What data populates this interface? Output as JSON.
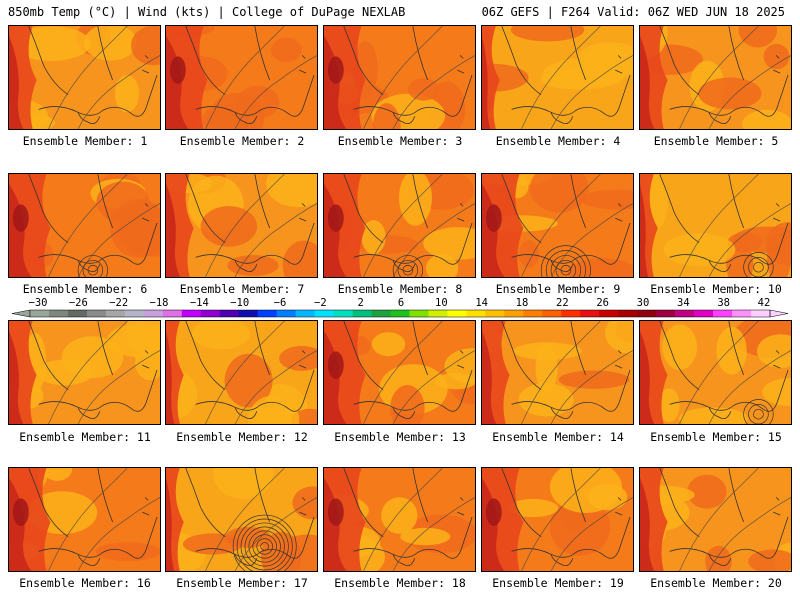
{
  "header": {
    "left": "850mb Temp (°C) | Wind (kts) | College of DuPage NEXLAB",
    "right": "06Z GEFS | F264 Valid: 06Z WED JUN 18 2025"
  },
  "members": [
    {
      "label": "Ensemble Member: 1",
      "style": "warm",
      "low": null
    },
    {
      "label": "Ensemble Member: 2",
      "style": "hot-west",
      "low": null
    },
    {
      "label": "Ensemble Member: 3",
      "style": "hot-west",
      "low": null
    },
    {
      "label": "Ensemble Member: 4",
      "style": "mild",
      "low": null
    },
    {
      "label": "Ensemble Member: 5",
      "style": "warm",
      "low": null
    },
    {
      "label": "Ensemble Member: 6",
      "style": "hot-west",
      "low": "weak"
    },
    {
      "label": "Ensemble Member: 7",
      "style": "warm",
      "low": null
    },
    {
      "label": "Ensemble Member: 8",
      "style": "hot-west",
      "low": "weak"
    },
    {
      "label": "Ensemble Member: 9",
      "style": "hot-west",
      "low": "moderate"
    },
    {
      "label": "Ensemble Member: 10",
      "style": "mild",
      "low": "weak-east"
    },
    {
      "label": "Ensemble Member: 11",
      "style": "warm",
      "low": null
    },
    {
      "label": "Ensemble Member: 12",
      "style": "mild",
      "low": null
    },
    {
      "label": "Ensemble Member: 13",
      "style": "hot-west",
      "low": null
    },
    {
      "label": "Ensemble Member: 14",
      "style": "warm",
      "low": null
    },
    {
      "label": "Ensemble Member: 15",
      "style": "warm",
      "low": "weak-east"
    },
    {
      "label": "Ensemble Member: 16",
      "style": "hot-west",
      "low": null
    },
    {
      "label": "Ensemble Member: 17",
      "style": "mild",
      "low": "strong"
    },
    {
      "label": "Ensemble Member: 18",
      "style": "hot-west",
      "low": null
    },
    {
      "label": "Ensemble Member: 19",
      "style": "hot-west",
      "low": null
    },
    {
      "label": "Ensemble Member: 20",
      "style": "warm",
      "low": null
    }
  ],
  "colorbar": {
    "labels": [
      "−30",
      "−26",
      "−22",
      "−18",
      "−14",
      "−10",
      "−6",
      "−2",
      "2",
      "6",
      "10",
      "14",
      "18",
      "22",
      "26",
      "30",
      "34",
      "38",
      "42"
    ],
    "colors": [
      "#9aa59a",
      "#7d877d",
      "#646b64",
      "#8a8a8a",
      "#a6a6a6",
      "#b4b4c8",
      "#c8a0dc",
      "#e070e8",
      "#c000ff",
      "#9000d0",
      "#5000b0",
      "#1010b0",
      "#0040ff",
      "#0080ff",
      "#00b8ff",
      "#00e0ff",
      "#00e0c0",
      "#00c080",
      "#20a040",
      "#20c020",
      "#80e000",
      "#d0f000",
      "#ffff00",
      "#ffe000",
      "#ffc000",
      "#ffa000",
      "#ff8000",
      "#ff6000",
      "#ff3000",
      "#e81010",
      "#c80000",
      "#a80000",
      "#900010",
      "#a00040",
      "#c00080",
      "#e000c0",
      "#ff40ff",
      "#ff90ff",
      "#ffd0ff"
    ]
  }
}
